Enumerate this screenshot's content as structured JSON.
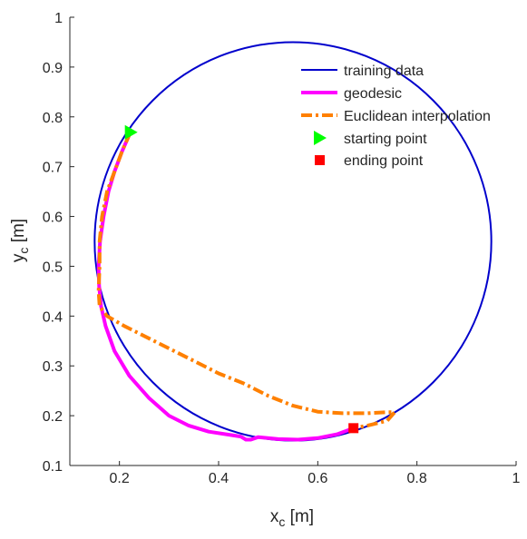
{
  "chart_data": {
    "type": "line",
    "xlim": [
      0.1,
      1
    ],
    "ylim": [
      0.1,
      1
    ],
    "x_ticks": [
      "0.2",
      "0.4",
      "0.6",
      "0.8",
      "1"
    ],
    "y_ticks": [
      "0.1",
      "0.2",
      "0.3",
      "0.4",
      "0.5",
      "0.6",
      "0.7",
      "0.8",
      "0.9",
      "1"
    ],
    "xlabel": {
      "main": "x",
      "sub": "c",
      "unit": " [m]"
    },
    "ylabel": {
      "main": "y",
      "sub": "c",
      "unit": " [m]"
    },
    "grid": false,
    "legend_position": "top-right",
    "series": [
      {
        "name": "training data",
        "kind": "circle",
        "center": [
          0.55,
          0.55
        ],
        "radius": 0.4,
        "color": "#0000cc"
      },
      {
        "name": "geodesic",
        "color": "#ff00ff",
        "x": [
          0.222,
          0.205,
          0.19,
          0.178,
          0.168,
          0.161,
          0.158,
          0.159,
          0.163,
          0.172,
          0.19,
          0.22,
          0.26,
          0.3,
          0.34,
          0.38,
          0.42,
          0.445,
          0.455,
          0.465,
          0.48,
          0.52,
          0.56,
          0.6,
          0.64,
          0.672
        ],
        "y": [
          0.769,
          0.73,
          0.69,
          0.65,
          0.6,
          0.55,
          0.5,
          0.46,
          0.42,
          0.38,
          0.33,
          0.28,
          0.235,
          0.2,
          0.18,
          0.168,
          0.162,
          0.158,
          0.152,
          0.152,
          0.157,
          0.153,
          0.152,
          0.155,
          0.163,
          0.175
        ]
      },
      {
        "name": "Euclidean interpolation",
        "color": "#ff8000",
        "x": [
          0.222,
          0.205,
          0.19,
          0.175,
          0.165,
          0.16,
          0.16,
          0.158,
          0.16,
          0.175,
          0.21,
          0.25,
          0.3,
          0.35,
          0.4,
          0.45,
          0.5,
          0.55,
          0.6,
          0.65,
          0.7,
          0.74,
          0.755,
          0.74,
          0.7,
          0.672
        ],
        "y": [
          0.769,
          0.73,
          0.69,
          0.65,
          0.6,
          0.55,
          0.5,
          0.45,
          0.42,
          0.4,
          0.38,
          0.36,
          0.335,
          0.31,
          0.285,
          0.265,
          0.24,
          0.22,
          0.208,
          0.205,
          0.205,
          0.207,
          0.207,
          0.19,
          0.18,
          0.175
        ]
      },
      {
        "name": "starting point",
        "kind": "marker",
        "marker": "triangle-right",
        "x": [
          0.222
        ],
        "y": [
          0.769
        ],
        "color": "#00ff00"
      },
      {
        "name": "ending point",
        "kind": "marker",
        "marker": "square",
        "x": [
          0.672
        ],
        "y": [
          0.175
        ],
        "color": "#ff0000"
      }
    ]
  }
}
